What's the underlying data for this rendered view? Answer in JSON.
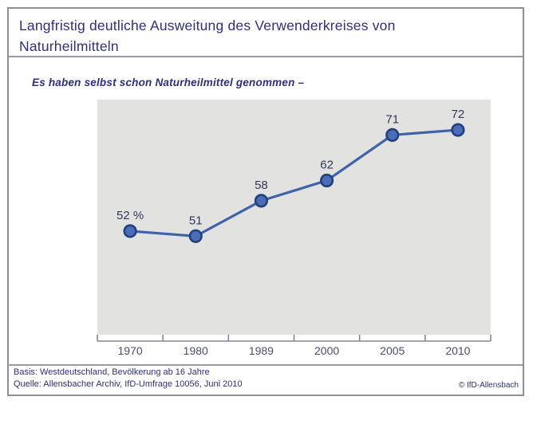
{
  "header": {
    "title": "Langfristig deutliche Ausweitung des Verwenderkreises von Naturheilmitteln",
    "subtitle": "Es haben selbst schon Naturheilmittel genommen –"
  },
  "chart_data": {
    "type": "line",
    "title": "Langfristig deutliche Ausweitung des Verwenderkreises von Naturheilmitteln",
    "subtitle": "Es haben selbst schon Naturheilmittel genommen –",
    "categories": [
      "1970",
      "1980",
      "1989",
      "2000",
      "2005",
      "2010"
    ],
    "values": [
      52,
      51,
      58,
      62,
      71,
      72
    ],
    "point_labels": [
      "52 %",
      "51",
      "58",
      "62",
      "71",
      "72"
    ],
    "unit": "%",
    "ylim": [
      31.5,
      78
    ],
    "grid": false,
    "legend_position": "none",
    "plot_bg": "#e2e2e0",
    "line_color": "#3e63a9",
    "point_fill": "#4a6db6",
    "point_stroke": "#20407e",
    "value_label_color": "#34365c",
    "axis_color": "#8585a0",
    "tick_label_color": "#4c4c6a"
  },
  "footer": {
    "basis": "Basis: Westdeutschland, Bevölkerung ab 16 Jahre",
    "quelle": "Quelle: Allensbacher Archiv, IfD-Umfrage 10056, Juni 2010",
    "copyright": "© IfD-Allensbach"
  },
  "colors": {
    "title_text": "#2c2f84",
    "footer_text": "#2c2f84",
    "frame_border": "#8f8f94",
    "divider": "#9a9aa8",
    "background": "#ffffff"
  }
}
